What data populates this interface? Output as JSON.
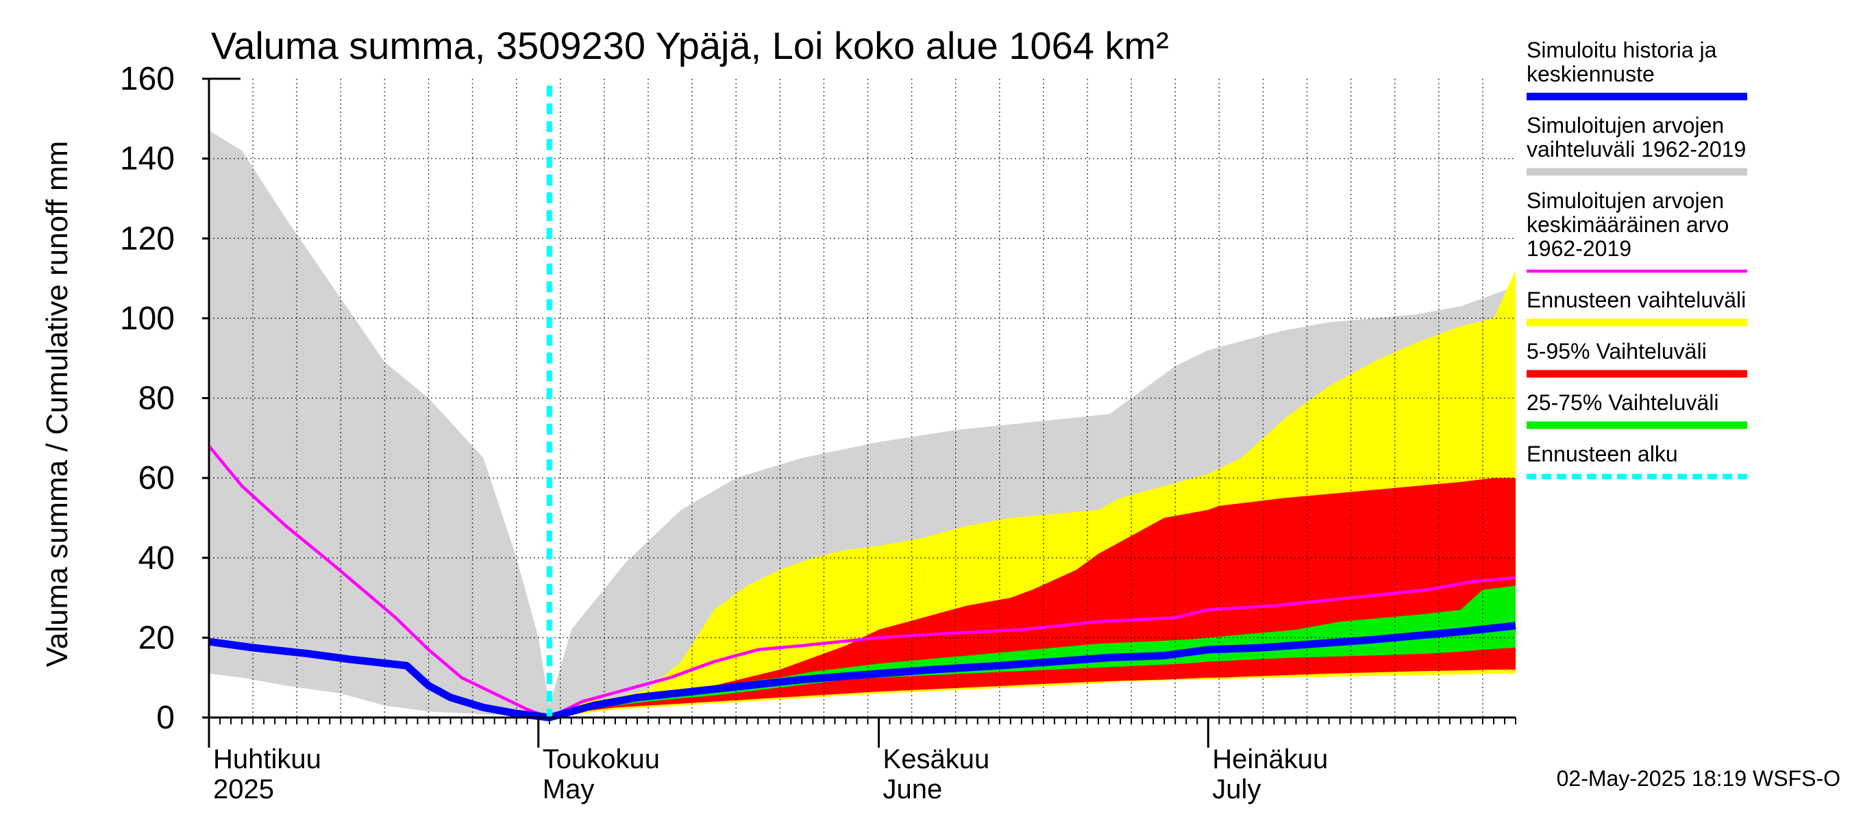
{
  "chart_data": {
    "type": "area",
    "title": "Valuma summa, 3509230 Ypäjä, Loi koko alue 1064 km²",
    "ylabel": "Valuma summa / Cumulative runoff    mm",
    "ylim": [
      0,
      160
    ],
    "yticks": [
      0,
      20,
      40,
      60,
      80,
      100,
      120,
      140,
      160
    ],
    "xlim": [
      "2025-04-01",
      "2025-07-29"
    ],
    "grid": true,
    "forecast_start": "2025-05-02",
    "months": [
      {
        "start": "2025-04-01",
        "label": "Huhtikuu",
        "sublabel": "2025"
      },
      {
        "start": "2025-05-01",
        "label": "Toukokuu",
        "sublabel": "May"
      },
      {
        "start": "2025-06-01",
        "label": "Kesäkuu",
        "sublabel": "June"
      },
      {
        "start": "2025-07-01",
        "label": "Heinäkuu",
        "sublabel": "July"
      }
    ],
    "legend": {
      "position": "right",
      "entries": [
        {
          "lines": [
            "Simuloitu historia ja",
            "keskiennuste"
          ],
          "color": "#0000ff",
          "style": "thick"
        },
        {
          "lines": [
            "Simuloitujen arvojen",
            "vaihteluväli 1962-2019"
          ],
          "color": "#cccccc",
          "style": "thick"
        },
        {
          "lines": [
            "Simuloitujen arvojen",
            "keskimääräinen arvo",
            "   1962-2019"
          ],
          "color": "#ff00ff",
          "style": "thin"
        },
        {
          "lines": [
            "Ennusteen vaihteluväli"
          ],
          "color": "#ffff00",
          "style": "thick"
        },
        {
          "lines": [
            "5-95% Vaihteluväli"
          ],
          "color": "#ff0000",
          "style": "thick"
        },
        {
          "lines": [
            "25-75% Vaihteluväli"
          ],
          "color": "#00ee00",
          "style": "thick"
        },
        {
          "lines": [
            "Ennusteen alku"
          ],
          "color": "#00ffff",
          "style": "dashed"
        }
      ]
    },
    "bands": [
      {
        "name": "Simuloitujen arvojen vaihteluväli 1962-2019",
        "color": "#d3d3d3",
        "x": [
          "2025-04-01",
          "2025-04-04",
          "2025-04-08",
          "2025-04-13",
          "2025-04-17",
          "2025-04-21",
          "2025-04-26",
          "2025-04-29",
          "2025-05-01",
          "2025-05-02",
          "2025-05-04",
          "2025-05-09",
          "2025-05-14",
          "2025-05-19",
          "2025-05-25",
          "2025-06-01",
          "2025-06-08",
          "2025-06-15",
          "2025-06-22",
          "2025-06-26",
          "2025-06-28",
          "2025-07-01",
          "2025-07-05",
          "2025-07-08",
          "2025-07-12",
          "2025-07-16",
          "2025-07-20",
          "2025-07-24",
          "2025-07-27",
          "2025-07-29"
        ],
        "upper": [
          147,
          142,
          125,
          105,
          89,
          80,
          65,
          40,
          20,
          3,
          22,
          39,
          52,
          60,
          65,
          69,
          72,
          74,
          76,
          84,
          88,
          92,
          95,
          97,
          99,
          100,
          101,
          103,
          106,
          108
        ],
        "lower": [
          11,
          10,
          8,
          6,
          3,
          1.5,
          0.8,
          0.4,
          0.1,
          0,
          1.5,
          3,
          4,
          5,
          6,
          7,
          8,
          8.5,
          9,
          9.5,
          9.8,
          10,
          10.5,
          11,
          11.5,
          11.8,
          12,
          12,
          12,
          12
        ]
      },
      {
        "name": "Ennusteen vaihteluväli",
        "color": "#ffff00",
        "x": [
          "2025-05-02",
          "2025-05-05",
          "2025-05-08",
          "2025-05-11",
          "2025-05-14",
          "2025-05-17",
          "2025-05-20",
          "2025-05-23",
          "2025-05-26",
          "2025-05-29",
          "2025-06-01",
          "2025-06-05",
          "2025-06-09",
          "2025-06-13",
          "2025-06-17",
          "2025-06-21",
          "2025-06-23",
          "2025-06-27",
          "2025-07-01",
          "2025-07-04",
          "2025-07-08",
          "2025-07-12",
          "2025-07-16",
          "2025-07-20",
          "2025-07-24",
          "2025-07-27",
          "2025-07-29"
        ],
        "upper": [
          0,
          4,
          5,
          7,
          14,
          27,
          33,
          37,
          40,
          42,
          43,
          45,
          48,
          50,
          51,
          52,
          55,
          58,
          61,
          65,
          75,
          83,
          89,
          94,
          98,
          100,
          112
        ],
        "lower": [
          0,
          1,
          2,
          2.5,
          3,
          3.5,
          4,
          4.5,
          5,
          5.5,
          6,
          6.5,
          7,
          7.5,
          8,
          8.5,
          9,
          9.3,
          9.5,
          9.8,
          10,
          10.2,
          10.4,
          10.6,
          10.8,
          11,
          11
        ]
      },
      {
        "name": "5-95% Vaihteluväli",
        "color": "#ff0000",
        "x": [
          "2025-05-02",
          "2025-05-05",
          "2025-05-08",
          "2025-05-11",
          "2025-05-14",
          "2025-05-17",
          "2025-05-20",
          "2025-05-23",
          "2025-05-26",
          "2025-05-29",
          "2025-06-01",
          "2025-06-05",
          "2025-06-09",
          "2025-06-13",
          "2025-06-15",
          "2025-06-19",
          "2025-06-21",
          "2025-06-23",
          "2025-06-27",
          "2025-07-01",
          "2025-07-02",
          "2025-07-05",
          "2025-07-08",
          "2025-07-12",
          "2025-07-16",
          "2025-07-20",
          "2025-07-24",
          "2025-07-27",
          "2025-07-29"
        ],
        "upper": [
          0,
          3,
          4.5,
          5.5,
          6.5,
          8,
          10,
          12,
          15,
          18,
          22,
          25,
          28,
          30,
          32,
          37,
          41,
          44,
          50,
          52,
          53,
          54,
          55,
          56,
          57,
          58,
          59,
          60,
          60
        ],
        "lower": [
          0,
          1.5,
          2.5,
          3,
          3.5,
          4,
          4.5,
          5,
          5.5,
          6,
          6.5,
          7,
          7.5,
          8,
          8.3,
          8.8,
          9,
          9.2,
          9.5,
          10,
          10,
          10.3,
          10.6,
          11,
          11.3,
          11.6,
          11.8,
          12,
          12
        ]
      },
      {
        "name": "25-75% Vaihteluväli",
        "color": "#00ee00",
        "x": [
          "2025-05-02",
          "2025-05-05",
          "2025-05-08",
          "2025-05-11",
          "2025-05-14",
          "2025-05-17",
          "2025-05-20",
          "2025-05-23",
          "2025-05-26",
          "2025-05-29",
          "2025-06-01",
          "2025-06-05",
          "2025-06-09",
          "2025-06-13",
          "2025-06-17",
          "2025-06-21",
          "2025-06-25",
          "2025-06-29",
          "2025-07-01",
          "2025-07-05",
          "2025-07-09",
          "2025-07-13",
          "2025-07-17",
          "2025-07-21",
          "2025-07-24",
          "2025-07-26",
          "2025-07-29"
        ],
        "upper": [
          0,
          2.5,
          4,
          5.5,
          6.5,
          7.5,
          9,
          10,
          11.5,
          12.5,
          13.5,
          14.5,
          15.5,
          16.5,
          17.5,
          18.5,
          19,
          19.5,
          20,
          21,
          22,
          24,
          25,
          26,
          27,
          32,
          33
        ],
        "lower": [
          0,
          1.8,
          3,
          4,
          4.8,
          5.5,
          6.5,
          7.5,
          8.5,
          9.5,
          10,
          10.5,
          11,
          11.5,
          12,
          12.5,
          13,
          13.5,
          14,
          14.5,
          15,
          15.3,
          15.6,
          16,
          16.5,
          17,
          17.5
        ]
      }
    ],
    "series": [
      {
        "name": "Simuloitujen arvojen keskimääräinen arvo 1962-2019",
        "color": "#ff00ff",
        "x": [
          "2025-04-01",
          "2025-04-04",
          "2025-04-08",
          "2025-04-12",
          "2025-04-15",
          "2025-04-18",
          "2025-04-21",
          "2025-04-24",
          "2025-04-27",
          "2025-04-30",
          "2025-05-02",
          "2025-05-05",
          "2025-05-09",
          "2025-05-13",
          "2025-05-17",
          "2025-05-21",
          "2025-05-25",
          "2025-06-01",
          "2025-06-07",
          "2025-06-14",
          "2025-06-21",
          "2025-06-28",
          "2025-07-01",
          "2025-07-07",
          "2025-07-14",
          "2025-07-21",
          "2025-07-25",
          "2025-07-29"
        ],
        "y": [
          68,
          58,
          48,
          39,
          32,
          25,
          17,
          10,
          6,
          2,
          0,
          4,
          7,
          10,
          14,
          17,
          18,
          20,
          21,
          22,
          24,
          25,
          27,
          28,
          30,
          32,
          34,
          35
        ]
      },
      {
        "name": "Simuloitu historia ja keskiennuste",
        "color": "#0000ff",
        "x": [
          "2025-04-01",
          "2025-04-05",
          "2025-04-10",
          "2025-04-14",
          "2025-04-19",
          "2025-04-21",
          "2025-04-23",
          "2025-04-26",
          "2025-04-29",
          "2025-05-02",
          "2025-05-06",
          "2025-05-10",
          "2025-05-15",
          "2025-05-20",
          "2025-05-25",
          "2025-06-01",
          "2025-06-06",
          "2025-06-12",
          "2025-06-17",
          "2025-06-22",
          "2025-06-27",
          "2025-07-01",
          "2025-07-06",
          "2025-07-11",
          "2025-07-16",
          "2025-07-20",
          "2025-07-24",
          "2025-07-29"
        ],
        "y": [
          19,
          17.5,
          16,
          14.5,
          13,
          8,
          5,
          2.5,
          1,
          0,
          3,
          5,
          6.5,
          8,
          9.5,
          11,
          12,
          13,
          14,
          15,
          15.5,
          17,
          17.5,
          18.5,
          19.5,
          20.5,
          21.5,
          23
        ]
      }
    ]
  },
  "footer": "02-May-2025 18:19 WSFS-O"
}
